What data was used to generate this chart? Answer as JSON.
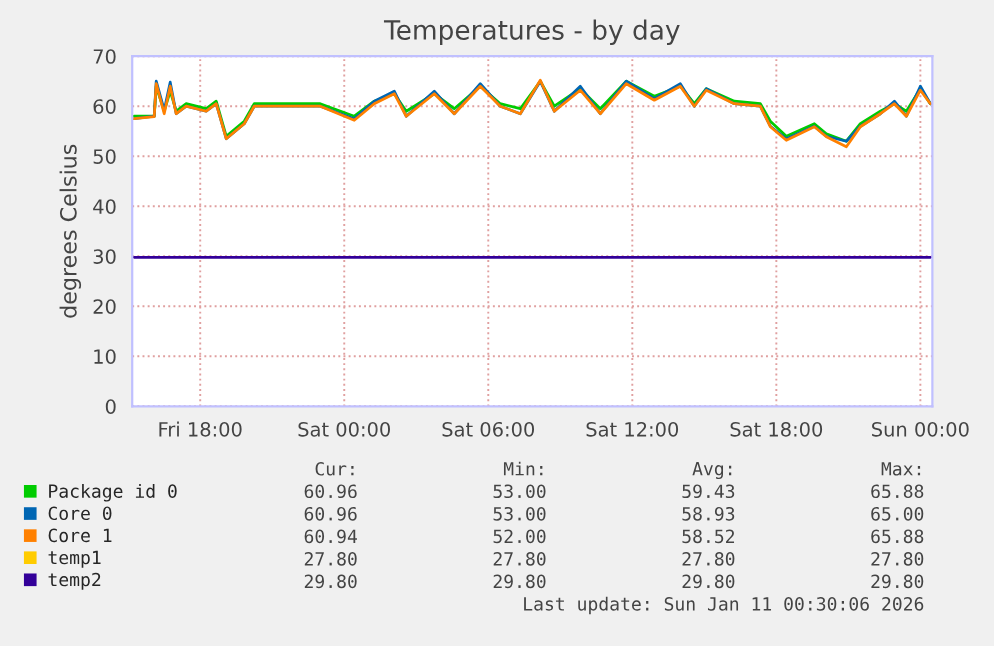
{
  "chart_data": {
    "type": "line",
    "title": "Temperatures - by day",
    "ylabel": "degrees Celsius",
    "x": [
      "2026-01-09T15:15",
      "2026-01-09T16:05",
      "2026-01-09T16:10",
      "2026-01-09T16:30",
      "2026-01-09T16:45",
      "2026-01-09T17:00",
      "2026-01-09T17:25",
      "2026-01-09T18:15",
      "2026-01-09T18:40",
      "2026-01-09T19:05",
      "2026-01-09T19:50",
      "2026-01-09T20:15",
      "2026-01-09T21:20",
      "2026-01-09T23:00",
      "2026-01-10T00:25",
      "2026-01-10T01:15",
      "2026-01-10T02:05",
      "2026-01-10T02:35",
      "2026-01-10T03:45",
      "2026-01-10T04:35",
      "2026-01-10T05:40",
      "2026-01-10T06:30",
      "2026-01-10T07:20",
      "2026-01-10T08:10",
      "2026-01-10T08:45",
      "2026-01-10T09:50",
      "2026-01-10T10:40",
      "2026-01-10T11:45",
      "2026-01-10T12:55",
      "2026-01-10T14:00",
      "2026-01-10T14:35",
      "2026-01-10T15:05",
      "2026-01-10T16:15",
      "2026-01-10T17:20",
      "2026-01-10T17:45",
      "2026-01-10T18:25",
      "2026-01-10T19:35",
      "2026-01-10T20:05",
      "2026-01-10T20:55",
      "2026-01-10T21:30",
      "2026-01-10T22:20",
      "2026-01-10T22:55",
      "2026-01-10T23:25",
      "2026-01-11T00:00",
      "2026-01-11T00:25"
    ],
    "series": [
      {
        "name": "Package id 0",
        "color": "#00cc00",
        "values": [
          58,
          58,
          64,
          59,
          63,
          59,
          60.5,
          59.5,
          61,
          54,
          57,
          60.5,
          60.5,
          60.5,
          58,
          61,
          62.5,
          59,
          62.5,
          59.5,
          64,
          60.5,
          59.5,
          65,
          60,
          63.5,
          59.5,
          65,
          62,
          64,
          60.5,
          63.5,
          61,
          60.5,
          57,
          54,
          56.5,
          54.5,
          53,
          56.5,
          59,
          60.5,
          59,
          63.5,
          60.5
        ]
      },
      {
        "name": "Core 0",
        "color": "#0066b3",
        "values": [
          57.5,
          58,
          65,
          59.2,
          64.8,
          58.5,
          60,
          59,
          60.5,
          53.5,
          56.5,
          60,
          60,
          60,
          57.5,
          61,
          63,
          58,
          63,
          58.5,
          64.5,
          60,
          58.5,
          65,
          59,
          64,
          58.5,
          65,
          61.5,
          64.5,
          60,
          63.5,
          60.5,
          60,
          56,
          53.5,
          56,
          54,
          53,
          56,
          58.5,
          61,
          58,
          64,
          60.5
        ]
      },
      {
        "name": "Core 1",
        "color": "#ff8000",
        "values": [
          57.5,
          57.9,
          64.5,
          58.5,
          64,
          58.5,
          60,
          59,
          60.5,
          53.5,
          56.5,
          60,
          60,
          60,
          57.2,
          60.5,
          62.5,
          58,
          62.5,
          58.5,
          64,
          60,
          58.5,
          65.2,
          59,
          63.2,
          58.5,
          64.5,
          61.2,
          64,
          60,
          63.2,
          60.5,
          60,
          55.9,
          53.2,
          55.9,
          53.9,
          51.9,
          55.9,
          58.5,
          60.5,
          58,
          63.2,
          60.5
        ]
      },
      {
        "name": "temp1",
        "color": "#ffcc00",
        "values": [
          null,
          null,
          null,
          null,
          null,
          null,
          null,
          null,
          null,
          null,
          null,
          null,
          null,
          null,
          null,
          null,
          null,
          null,
          null,
          null,
          null,
          null,
          null,
          null,
          null,
          null,
          null,
          null,
          null,
          null,
          null,
          null,
          null,
          null,
          null,
          null,
          null,
          null,
          null,
          null,
          null,
          null,
          null,
          null,
          null
        ]
      },
      {
        "name": "temp2",
        "color": "#330099",
        "values": [
          29.8,
          29.8,
          29.8,
          29.8,
          29.8,
          29.8,
          29.8,
          29.8,
          29.8,
          29.8,
          29.8,
          29.8,
          29.8,
          29.8,
          29.8,
          29.8,
          29.8,
          29.8,
          29.8,
          29.8,
          29.8,
          29.8,
          29.8,
          29.8,
          29.8,
          29.8,
          29.8,
          29.8,
          29.8,
          29.8,
          29.8,
          29.8,
          29.8,
          29.8,
          29.8,
          29.8,
          29.8,
          29.8,
          29.8,
          29.8,
          29.8,
          29.8,
          29.8,
          29.8,
          29.8
        ]
      }
    ],
    "xlim": [
      "2026-01-09T15:10",
      "2026-01-11T00:30"
    ],
    "xticks": [
      {
        "value": "2026-01-09T18:00",
        "label": "Fri 18:00"
      },
      {
        "value": "2026-01-10T00:00",
        "label": "Sat 00:00"
      },
      {
        "value": "2026-01-10T06:00",
        "label": "Sat 06:00"
      },
      {
        "value": "2026-01-10T12:00",
        "label": "Sat 12:00"
      },
      {
        "value": "2026-01-10T18:00",
        "label": "Sat 18:00"
      },
      {
        "value": "2026-01-11T00:00",
        "label": "Sun 00:00"
      }
    ],
    "ylim": [
      0,
      70
    ],
    "yticks": [
      0,
      10,
      20,
      30,
      40,
      50,
      60,
      70
    ],
    "grid": true,
    "legend": "bottom",
    "marker": "none",
    "line_style": "solid",
    "annotations": [
      "Cur:",
      "Min:",
      "Avg:",
      "Max:",
      "60.96",
      "53.00",
      "59.43",
      "65.88",
      "60.96",
      "53.00",
      "58.93",
      "65.00",
      "60.94",
      "52.00",
      "58.52",
      "65.88",
      "27.80",
      "27.80",
      "27.80",
      "27.80",
      "29.80",
      "29.80",
      "29.80",
      "29.80",
      "Last update: Sun Jan 11 00:30:06 2026"
    ]
  }
}
